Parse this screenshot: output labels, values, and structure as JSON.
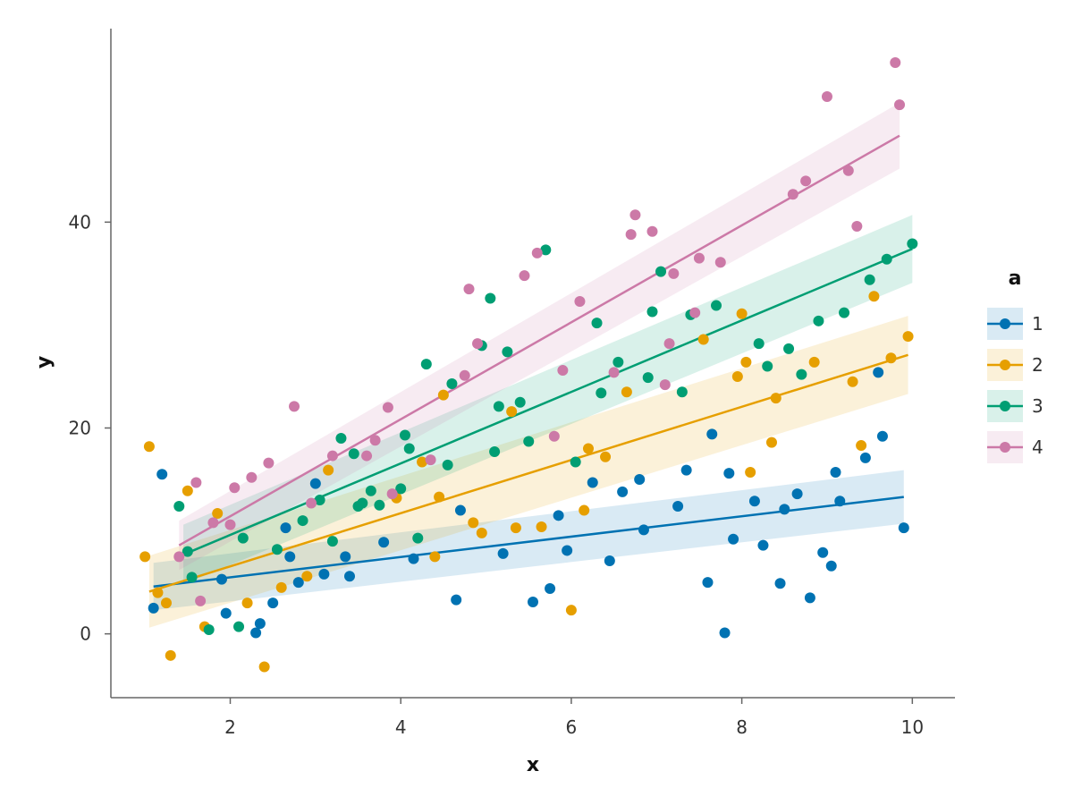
{
  "chart_data": {
    "type": "scatter",
    "xlabel": "x",
    "ylabel": "y",
    "xlim": [
      0.6,
      10.5
    ],
    "ylim": [
      -6.2,
      58.8
    ],
    "xticks": [
      2,
      4,
      6,
      8,
      10
    ],
    "yticks": [
      0,
      20,
      40
    ],
    "grid": false,
    "legend": {
      "title": "a",
      "placement": "right"
    },
    "series": [
      {
        "name": "1",
        "color": "#0072B2",
        "fit": {
          "x": [
            1.1,
            9.9
          ],
          "y": [
            4.6,
            13.3
          ],
          "band_halfwidth": [
            2.3,
            2.6
          ]
        },
        "points": [
          [
            1.1,
            2.5
          ],
          [
            1.2,
            15.5
          ],
          [
            1.9,
            5.3
          ],
          [
            1.95,
            2.0
          ],
          [
            2.3,
            0.1
          ],
          [
            2.35,
            1.0
          ],
          [
            2.5,
            3.0
          ],
          [
            2.65,
            10.3
          ],
          [
            2.7,
            7.5
          ],
          [
            2.8,
            5.0
          ],
          [
            3.0,
            14.6
          ],
          [
            3.1,
            5.8
          ],
          [
            3.35,
            7.5
          ],
          [
            3.4,
            5.6
          ],
          [
            3.8,
            8.9
          ],
          [
            4.15,
            7.3
          ],
          [
            4.65,
            3.3
          ],
          [
            4.7,
            12.0
          ],
          [
            5.2,
            7.8
          ],
          [
            5.55,
            3.1
          ],
          [
            5.75,
            4.4
          ],
          [
            5.85,
            11.5
          ],
          [
            5.95,
            8.1
          ],
          [
            6.25,
            14.7
          ],
          [
            6.45,
            7.1
          ],
          [
            6.6,
            13.8
          ],
          [
            6.8,
            15.0
          ],
          [
            6.85,
            10.1
          ],
          [
            7.25,
            12.4
          ],
          [
            7.35,
            15.9
          ],
          [
            7.6,
            5.0
          ],
          [
            7.65,
            19.4
          ],
          [
            7.8,
            0.1
          ],
          [
            7.85,
            15.6
          ],
          [
            7.9,
            9.2
          ],
          [
            8.15,
            12.9
          ],
          [
            8.25,
            8.6
          ],
          [
            8.45,
            4.9
          ],
          [
            8.5,
            12.1
          ],
          [
            8.65,
            13.6
          ],
          [
            8.8,
            3.5
          ],
          [
            8.95,
            7.9
          ],
          [
            9.05,
            6.6
          ],
          [
            9.1,
            15.7
          ],
          [
            9.15,
            12.9
          ],
          [
            9.45,
            17.1
          ],
          [
            9.6,
            25.4
          ],
          [
            9.65,
            19.2
          ],
          [
            9.9,
            10.3
          ]
        ]
      },
      {
        "name": "2",
        "color": "#E69F00",
        "fit": {
          "x": [
            1.05,
            9.95
          ],
          "y": [
            4.1,
            27.1
          ],
          "band_halfwidth": [
            3.5,
            3.8
          ]
        },
        "points": [
          [
            1.0,
            7.5
          ],
          [
            1.05,
            18.2
          ],
          [
            1.15,
            4.0
          ],
          [
            1.25,
            3.0
          ],
          [
            1.3,
            -2.1
          ],
          [
            1.5,
            13.9
          ],
          [
            1.7,
            0.7
          ],
          [
            1.85,
            11.7
          ],
          [
            2.2,
            3.0
          ],
          [
            2.4,
            -3.2
          ],
          [
            2.6,
            4.5
          ],
          [
            2.9,
            5.6
          ],
          [
            3.15,
            15.9
          ],
          [
            3.95,
            13.2
          ],
          [
            4.25,
            16.7
          ],
          [
            4.4,
            7.5
          ],
          [
            4.45,
            13.3
          ],
          [
            4.5,
            23.2
          ],
          [
            4.85,
            10.8
          ],
          [
            4.95,
            9.8
          ],
          [
            5.3,
            21.6
          ],
          [
            5.35,
            10.3
          ],
          [
            5.65,
            10.4
          ],
          [
            6.0,
            2.3
          ],
          [
            6.15,
            12.0
          ],
          [
            6.2,
            18.0
          ],
          [
            6.4,
            17.2
          ],
          [
            6.65,
            23.5
          ],
          [
            7.55,
            28.6
          ],
          [
            7.95,
            25.0
          ],
          [
            8.0,
            31.1
          ],
          [
            8.05,
            26.4
          ],
          [
            8.1,
            15.7
          ],
          [
            8.35,
            18.6
          ],
          [
            8.4,
            22.9
          ],
          [
            8.85,
            26.4
          ],
          [
            9.3,
            24.5
          ],
          [
            9.4,
            18.3
          ],
          [
            9.55,
            32.8
          ],
          [
            9.75,
            26.8
          ],
          [
            9.95,
            28.9
          ]
        ]
      },
      {
        "name": "3",
        "color": "#009E73",
        "fit": {
          "x": [
            1.45,
            10.0
          ],
          "y": [
            7.7,
            37.4
          ],
          "band_halfwidth": [
            2.9,
            3.3
          ]
        },
        "points": [
          [
            1.4,
            12.4
          ],
          [
            1.5,
            8.0
          ],
          [
            1.55,
            5.5
          ],
          [
            1.75,
            0.4
          ],
          [
            2.1,
            0.7
          ],
          [
            2.15,
            9.3
          ],
          [
            2.55,
            8.2
          ],
          [
            2.85,
            11.0
          ],
          [
            3.05,
            13.0
          ],
          [
            3.2,
            9.0
          ],
          [
            3.3,
            19.0
          ],
          [
            3.45,
            17.5
          ],
          [
            3.5,
            12.4
          ],
          [
            3.55,
            12.7
          ],
          [
            3.65,
            13.9
          ],
          [
            3.75,
            12.5
          ],
          [
            4.0,
            14.1
          ],
          [
            4.05,
            19.3
          ],
          [
            4.1,
            18.0
          ],
          [
            4.2,
            9.3
          ],
          [
            4.3,
            26.2
          ],
          [
            4.55,
            16.4
          ],
          [
            4.6,
            24.3
          ],
          [
            4.95,
            28.0
          ],
          [
            5.05,
            32.6
          ],
          [
            5.1,
            17.7
          ],
          [
            5.15,
            22.1
          ],
          [
            5.25,
            27.4
          ],
          [
            5.4,
            22.5
          ],
          [
            5.5,
            18.7
          ],
          [
            5.7,
            37.3
          ],
          [
            6.05,
            16.7
          ],
          [
            6.3,
            30.2
          ],
          [
            6.35,
            23.4
          ],
          [
            6.55,
            26.4
          ],
          [
            6.9,
            24.9
          ],
          [
            6.95,
            31.3
          ],
          [
            7.05,
            35.2
          ],
          [
            7.3,
            23.5
          ],
          [
            7.4,
            31.0
          ],
          [
            7.7,
            31.9
          ],
          [
            8.2,
            28.2
          ],
          [
            8.3,
            26.0
          ],
          [
            8.55,
            27.7
          ],
          [
            8.7,
            25.2
          ],
          [
            8.9,
            30.4
          ],
          [
            9.2,
            31.2
          ],
          [
            9.5,
            34.4
          ],
          [
            9.7,
            36.4
          ],
          [
            10.0,
            37.9
          ]
        ]
      },
      {
        "name": "4",
        "color": "#CC79A7",
        "fit": {
          "x": [
            1.4,
            9.85
          ],
          "y": [
            8.6,
            48.4
          ],
          "band_halfwidth": [
            2.4,
            3.2
          ]
        },
        "points": [
          [
            1.4,
            7.5
          ],
          [
            1.6,
            14.7
          ],
          [
            1.65,
            3.2
          ],
          [
            1.8,
            10.8
          ],
          [
            2.0,
            10.6
          ],
          [
            2.05,
            14.2
          ],
          [
            2.25,
            15.2
          ],
          [
            2.45,
            16.6
          ],
          [
            2.75,
            22.1
          ],
          [
            2.95,
            12.7
          ],
          [
            3.2,
            17.3
          ],
          [
            3.6,
            17.3
          ],
          [
            3.7,
            18.8
          ],
          [
            3.85,
            22.0
          ],
          [
            3.9,
            13.6
          ],
          [
            4.35,
            16.9
          ],
          [
            4.75,
            25.1
          ],
          [
            4.8,
            33.5
          ],
          [
            4.9,
            28.2
          ],
          [
            5.45,
            34.8
          ],
          [
            5.6,
            37.0
          ],
          [
            5.8,
            19.2
          ],
          [
            5.9,
            25.6
          ],
          [
            6.1,
            32.3
          ],
          [
            6.5,
            25.4
          ],
          [
            6.7,
            38.8
          ],
          [
            6.75,
            40.7
          ],
          [
            6.95,
            39.1
          ],
          [
            7.1,
            24.2
          ],
          [
            7.15,
            28.2
          ],
          [
            7.2,
            35.0
          ],
          [
            7.45,
            31.2
          ],
          [
            7.5,
            36.5
          ],
          [
            7.75,
            36.1
          ],
          [
            8.6,
            42.7
          ],
          [
            8.75,
            44.0
          ],
          [
            9.0,
            52.2
          ],
          [
            9.25,
            45.0
          ],
          [
            9.35,
            39.6
          ],
          [
            9.8,
            55.5
          ],
          [
            9.85,
            51.4
          ]
        ]
      }
    ]
  }
}
